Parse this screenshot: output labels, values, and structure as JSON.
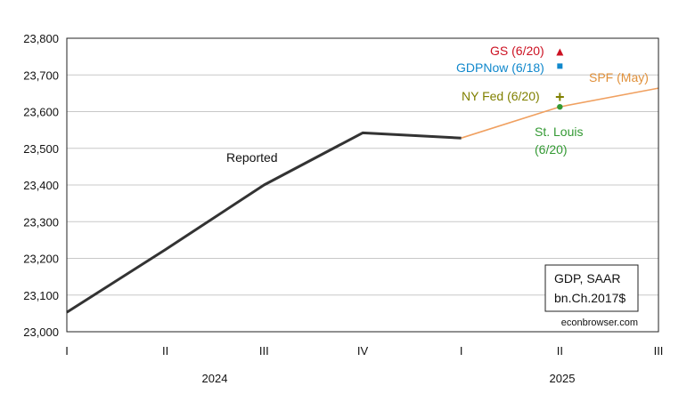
{
  "chart_data": {
    "type": "line",
    "y_ticks": [
      "23,000",
      "23,100",
      "23,200",
      "23,300",
      "23,400",
      "23,500",
      "23,600",
      "23,700",
      "23,800"
    ],
    "ylim": [
      23000,
      23800
    ],
    "x_ticks": [
      "I",
      "II",
      "III",
      "IV",
      "I",
      "II",
      "III"
    ],
    "years": [
      "2024",
      "2025"
    ],
    "series": [
      {
        "name": "Reported",
        "color": "#333333",
        "x": [
          "2024Q1",
          "2024Q2",
          "2024Q3",
          "2024Q4",
          "2025Q1"
        ],
        "values": [
          23053,
          23224,
          23400,
          23542,
          23528
        ]
      },
      {
        "name": "SPF (May)",
        "color": "#f0a060",
        "x": [
          "2025Q1",
          "2025Q2",
          "2025Q3"
        ],
        "values": [
          23528,
          23613,
          23664
        ]
      }
    ],
    "points": [
      {
        "label": "GS (6/20)",
        "x": "2025Q2",
        "value": 23760,
        "marker": "triangle",
        "color": "#cc1122"
      },
      {
        "label": "GDPNow (6/18)",
        "x": "2025Q2",
        "value": 23724,
        "marker": "square",
        "color": "#1188cc"
      },
      {
        "label": "NY Fed (6/20)",
        "x": "2025Q2",
        "value": 23640,
        "marker": "plus",
        "color": "#808000"
      },
      {
        "label_lines": [
          "St. Louis",
          "(6/20)"
        ],
        "x": "2025Q2",
        "value": 23613,
        "marker": "circle",
        "color": "#339933"
      }
    ],
    "note_box": [
      "GDP, SAAR",
      "bn.Ch.2017$"
    ],
    "credit": "econbrowser.com",
    "grid": "horizontal"
  }
}
